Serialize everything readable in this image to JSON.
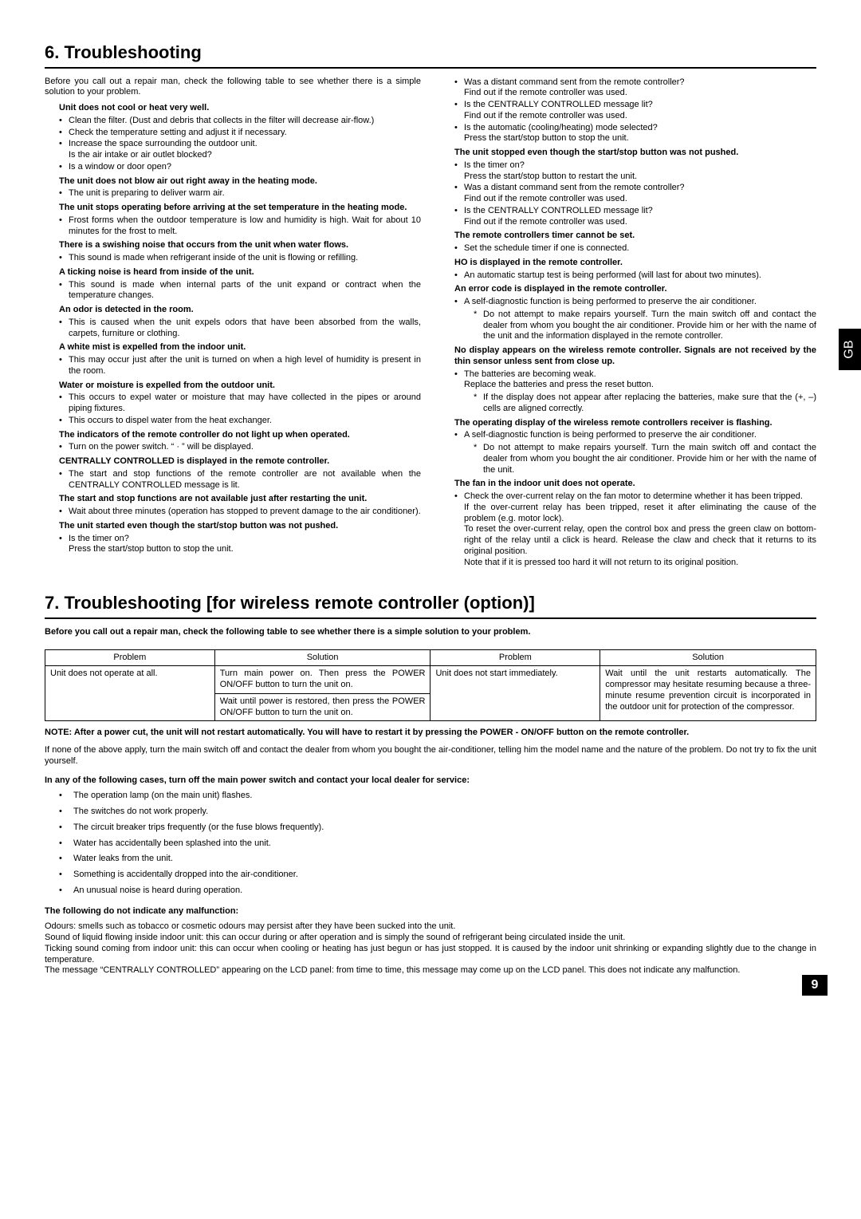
{
  "sideTab": "GB",
  "pageNumber": "9",
  "section6": {
    "title": "6. Troubleshooting",
    "intro": "Before you call out a repair man, check the following table to see whether there is a simple solution to your problem.",
    "left": [
      {
        "h": "Unit does not cool or heat very well.",
        "b": [
          "Clean the filter. (Dust and debris that collects in the filter will decrease air-flow.)",
          "Check the temperature setting and adjust it if necessary.",
          "Increase the space surrounding the outdoor unit.\nIs the air intake or air outlet blocked?",
          "Is a window or door open?"
        ]
      },
      {
        "h": "The unit does not blow air out right away in the heating mode.",
        "b": [
          "The unit is preparing to deliver warm air."
        ]
      },
      {
        "h": "The unit stops operating before arriving at the set temperature in the heating mode.",
        "b": [
          "Frost forms when the outdoor temperature is low and humidity is high. Wait for about 10 minutes for the frost to melt."
        ]
      },
      {
        "h": "There is a swishing noise that occurs from the unit when water flows.",
        "b": [
          "This sound is made when refrigerant inside of the unit is flowing or refilling."
        ]
      },
      {
        "h": "A ticking noise is heard from inside of the unit.",
        "b": [
          "This sound is made when internal parts of the unit expand or contract when the temperature changes."
        ]
      },
      {
        "h": "An odor is detected in the room.",
        "b": [
          "This is caused when the unit expels odors that have been absorbed from the walls, carpets, furniture or clothing."
        ]
      },
      {
        "h": "A white mist is expelled from the indoor unit.",
        "b": [
          "This may occur just after the unit is turned on when a high level of humidity is present in the room."
        ]
      },
      {
        "h": "Water or moisture is expelled from the outdoor unit.",
        "b": [
          "This occurs to expel water or moisture that may have collected in the pipes or around piping fixtures.",
          "This occurs to dispel water from the heat exchanger."
        ]
      },
      {
        "h": "The indicators of the remote controller do not light up when operated.",
        "b": [
          "Turn on the power switch. “ · ” will be displayed."
        ]
      },
      {
        "h": "CENTRALLY CONTROLLED is displayed in the remote controller.",
        "b": [
          "The start and stop functions of the remote controller are not available when the CENTRALLY CONTROLLED message is lit."
        ]
      },
      {
        "h": "The start and stop functions are not available just after restarting the unit.",
        "b": [
          "Wait about three minutes (operation has stopped to prevent damage to the air conditioner)."
        ]
      },
      {
        "h": "The unit started even though the start/stop button was not pushed.",
        "b": [
          "Is the timer on?\nPress the start/stop button to stop the unit."
        ]
      }
    ],
    "right": [
      {
        "b": [
          "Was a distant command sent from the remote controller?\nFind out if the remote controller was used.",
          "Is the CENTRALLY CONTROLLED message lit?\nFind out if the remote controller was used.",
          "Is the automatic (cooling/heating) mode selected?\nPress the start/stop button to stop the unit."
        ]
      },
      {
        "h": "The unit stopped even though the start/stop button was not pushed.",
        "b": [
          "Is the timer on?\nPress the start/stop button to restart the unit.",
          "Was a distant command sent from the remote controller?\nFind out if the remote controller was used.",
          "Is the CENTRALLY CONTROLLED message lit?\nFind out if the remote controller was used."
        ]
      },
      {
        "h": "The remote controllers timer cannot be set.",
        "b": [
          "Set the schedule timer if one is connected."
        ]
      },
      {
        "h": "HO is displayed in the remote controller.",
        "b": [
          "An automatic startup test is being performed (will last for about two minutes)."
        ]
      },
      {
        "h": "An error code is displayed in the remote controller.",
        "b": [
          "A self-diagnostic function is being performed to preserve the air conditioner."
        ],
        "s": [
          "Do not attempt to make repairs yourself. Turn the main switch off and contact the dealer from whom you bought the air conditioner. Provide him or her with the name of the unit and the information displayed in the remote controller."
        ]
      },
      {
        "h": "No display appears on the wireless remote controller. Signals are not received by the thin sensor unless sent from close up.",
        "b": [
          "The batteries are becoming weak.\nReplace the batteries and press the reset button."
        ],
        "s": [
          "If the display does not appear after replacing the batteries, make sure that the (+, –) cells are aligned correctly."
        ]
      },
      {
        "h": "The operating display of the wireless remote controllers receiver is flashing.",
        "b": [
          "A self-diagnostic function is being performed to preserve the air conditioner."
        ],
        "s": [
          "Do not attempt to make repairs yourself. Turn the main switch off and contact the dealer from whom you bought the air conditioner. Provide him or her with the name of the unit."
        ]
      },
      {
        "h": "The fan in the indoor unit does not operate.",
        "b": [
          "Check the over-current relay on the fan motor to determine whether it has been tripped.\nIf the over-current relay has been tripped, reset it after eliminating the cause of the problem (e.g. motor lock).\nTo reset the over-current relay, open the control box and press the green claw on bottom-right of the relay until a click is heard. Release the claw and check that it returns to its original position.\nNote that if it is pressed too hard it will not return to its original position."
        ]
      }
    ]
  },
  "section7": {
    "title": "7. Troubleshooting [for wireless remote controller (option)]",
    "intro": "Before you call out a repair man, check the following table to see whether there is a simple solution to your problem.",
    "table": {
      "headers": [
        "Problem",
        "Solution",
        "Problem",
        "Solution"
      ],
      "rows": [
        [
          "Unit does not operate at all.",
          "Turn main power on. Then press the POWER ON/OFF button to turn the unit on.",
          "Unit does not start immediately.",
          "Wait until the unit restarts automatically. The compressor may hesitate resuming because a three-minute resume prevention circuit is incorporated in the outdoor unit for protection of the compressor."
        ],
        [
          "",
          "Wait until power is restored, then press the POWER ON/OFF button to turn the unit on.",
          "",
          ""
        ]
      ]
    },
    "note": "NOTE: After a power cut, the unit will not restart automatically. You will have to restart it by pressing the POWER - ON/OFF button on the remote controller.",
    "p1": "If none of the above apply, turn the main switch off and contact the dealer from whom you bought the air-conditioner, telling him the model name and the nature of the problem. Do not try to fix the unit yourself.",
    "p2b": "In any of the following cases, turn off the main power switch and contact your local dealer for service:",
    "cases": [
      "The operation lamp (on the main unit) flashes.",
      "The switches do not work properly.",
      "The circuit breaker trips frequently (or the fuse blows frequently).",
      "Water has accidentally been splashed into the unit.",
      "Water leaks from the unit.",
      "Something is accidentally dropped into the air-conditioner.",
      "An unusual noise is heard during operation."
    ],
    "p3b": "The following do not indicate any malfunction:",
    "p3": "Odours: smells such as tobacco or cosmetic odours may persist after they have been sucked into the unit.\nSound of liquid flowing inside indoor unit: this can occur during or after operation and is simply the sound of refrigerant being circulated inside the unit.\nTicking sound coming from indoor unit: this can occur when cooling or heating has just begun or has just stopped. It is caused by the indoor unit shrinking or expanding slightly due to the change in temperature.\nThe message “CENTRALLY CONTROLLED” appearing on the LCD panel: from time to time, this message may come up on the LCD panel. This does not indicate any malfunction."
  }
}
